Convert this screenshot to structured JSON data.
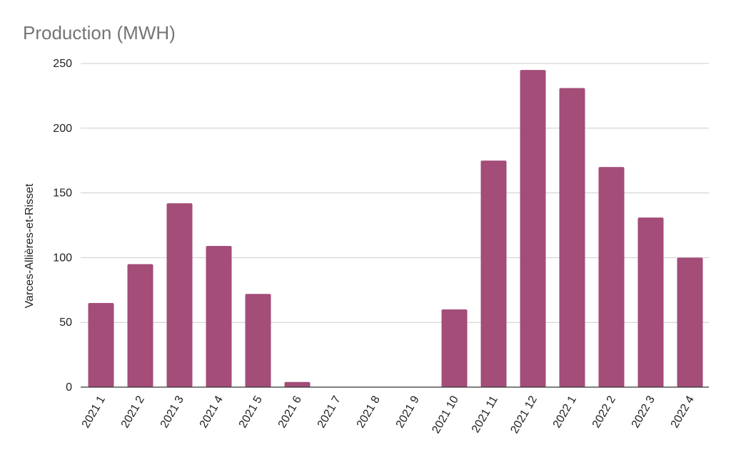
{
  "chart_data": {
    "type": "bar",
    "title": "Production (MWH)",
    "xlabel": "",
    "ylabel": "Varces-Allières-et-Risset",
    "ylim": [
      0,
      250
    ],
    "yticks": [
      0,
      50,
      100,
      150,
      200,
      250
    ],
    "grid": true,
    "bar_color": "#a34d78",
    "categories": [
      "2021 1",
      "2021 2",
      "2021 3",
      "2021 4",
      "2021 5",
      "2021 6",
      "2021 7",
      "2021 8",
      "2021 9",
      "2021 10",
      "2021 11",
      "2021 12",
      "2022 1",
      "2022 2",
      "2022 3",
      "2022 4"
    ],
    "values": [
      65,
      95,
      142,
      109,
      72,
      4,
      0,
      0,
      0,
      60,
      175,
      245,
      231,
      170,
      131,
      100
    ]
  }
}
